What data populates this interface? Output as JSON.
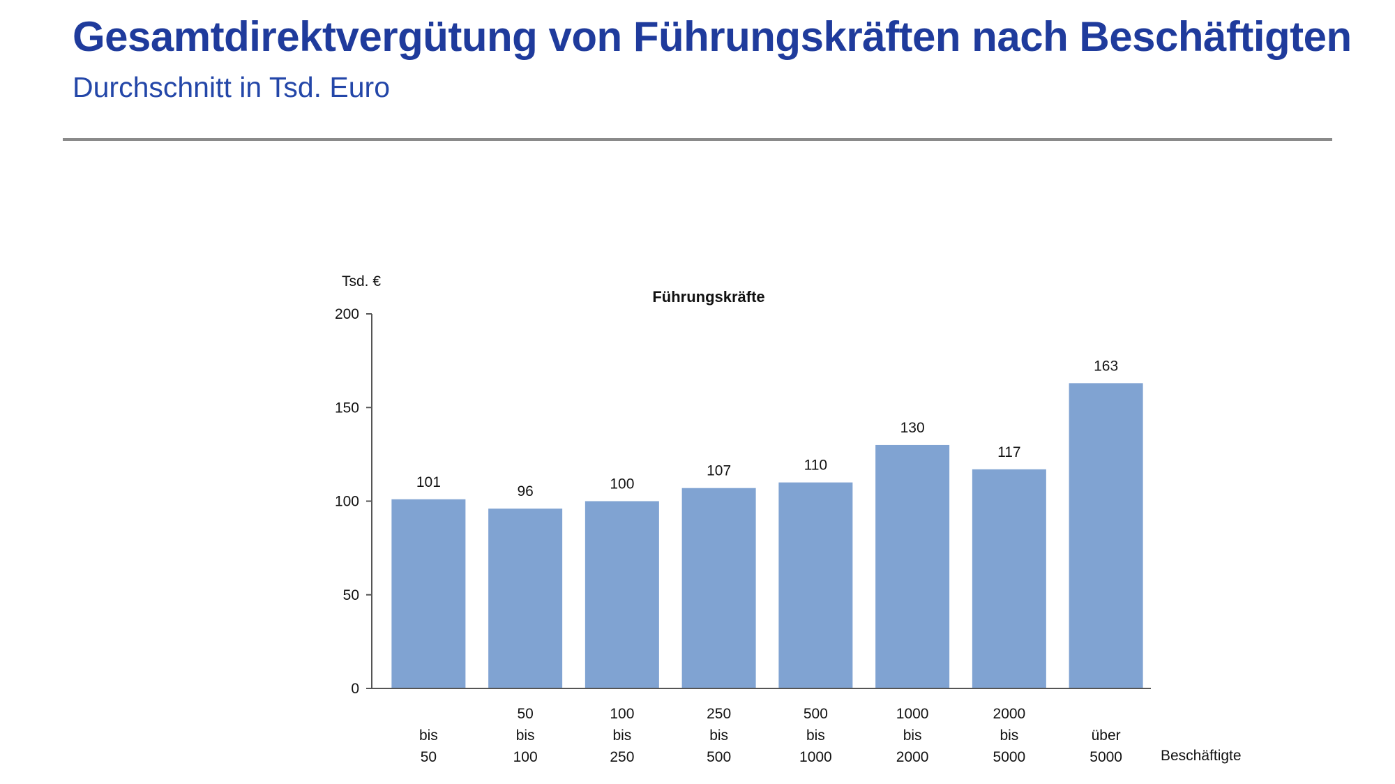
{
  "header": {
    "title": "Gesamtdirektvergütung von Führungskräften nach Beschäftigten",
    "subtitle": "Durchschnitt in Tsd. Euro"
  },
  "chart_data": {
    "type": "bar",
    "title": "Führungskräfte",
    "ylabel": "Tsd. €",
    "xlabel": "Beschäftigte",
    "ylim": [
      0,
      200
    ],
    "yticks": [
      0,
      50,
      100,
      150,
      200
    ],
    "categories": [
      [
        "",
        "bis",
        "50"
      ],
      [
        "50",
        "bis",
        "100"
      ],
      [
        "100",
        "bis",
        "250"
      ],
      [
        "250",
        "bis",
        "500"
      ],
      [
        "500",
        "bis",
        "1000"
      ],
      [
        "1000",
        "bis",
        "2000"
      ],
      [
        "2000",
        "bis",
        "5000"
      ],
      [
        "",
        "über",
        "5000"
      ]
    ],
    "values": [
      101,
      96,
      100,
      107,
      110,
      130,
      117,
      163
    ],
    "bar_color": "#80a3d2",
    "grid": false,
    "legend": "none"
  }
}
